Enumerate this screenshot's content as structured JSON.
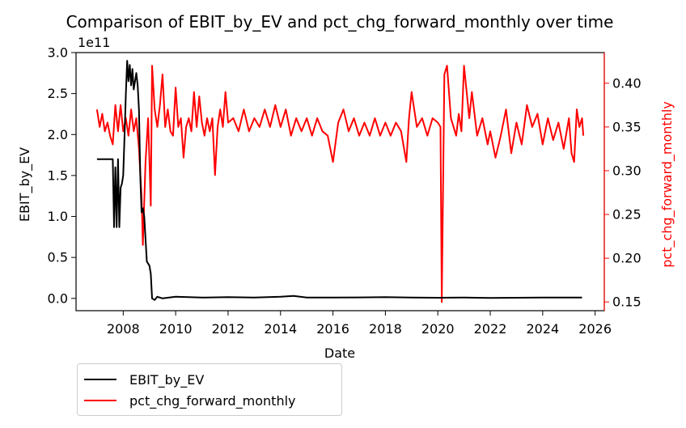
{
  "chart_data": {
    "type": "line",
    "title": "Comparison of EBIT_by_EV and pct_chg_forward_monthly over time",
    "xlabel": "Date",
    "ylabel_left": "EBIT_by_EV",
    "ylabel_right": "pct_chg_forward_monthly",
    "left_axis_offset_label": "1e11",
    "x_ticks": [
      "2008",
      "2010",
      "2012",
      "2014",
      "2016",
      "2018",
      "2020",
      "2022",
      "2024",
      "2026"
    ],
    "y_left_ticks": [
      "0.0",
      "0.5",
      "1.0",
      "1.5",
      "2.0",
      "2.5",
      "3.0"
    ],
    "y_right_ticks": [
      "0.15",
      "0.20",
      "0.25",
      "0.30",
      "0.35",
      "0.40"
    ],
    "xlim": [
      2006.2,
      2026.35
    ],
    "ylim_left": [
      -0.15,
      3.0
    ],
    "ylim_right": [
      0.14,
      0.435
    ],
    "grid": false,
    "legend_position": "below-left",
    "series": [
      {
        "name": "EBIT_by_EV",
        "axis": "left",
        "color": "#000000",
        "points": [
          [
            2007.0,
            1.7
          ],
          [
            2007.6,
            1.7
          ],
          [
            2007.65,
            0.87
          ],
          [
            2007.7,
            1.6
          ],
          [
            2007.75,
            0.87
          ],
          [
            2007.8,
            1.7
          ],
          [
            2007.85,
            0.87
          ],
          [
            2007.9,
            1.35
          ],
          [
            2007.95,
            1.4
          ],
          [
            2008.0,
            1.5
          ],
          [
            2008.05,
            2.0
          ],
          [
            2008.1,
            2.5
          ],
          [
            2008.15,
            2.9
          ],
          [
            2008.2,
            2.65
          ],
          [
            2008.25,
            2.85
          ],
          [
            2008.3,
            2.6
          ],
          [
            2008.35,
            2.8
          ],
          [
            2008.4,
            2.55
          ],
          [
            2008.5,
            2.75
          ],
          [
            2008.55,
            2.6
          ],
          [
            2008.6,
            2.3
          ],
          [
            2008.65,
            1.5
          ],
          [
            2008.7,
            1.05
          ],
          [
            2008.75,
            1.1
          ],
          [
            2008.8,
            1.0
          ],
          [
            2008.9,
            0.45
          ],
          [
            2009.0,
            0.4
          ],
          [
            2009.05,
            0.3
          ],
          [
            2009.1,
            0.0
          ],
          [
            2009.2,
            -0.02
          ],
          [
            2009.3,
            0.02
          ],
          [
            2009.5,
            0.0
          ],
          [
            2010.0,
            0.02
          ],
          [
            2011.0,
            0.01
          ],
          [
            2012.0,
            0.015
          ],
          [
            2013.0,
            0.01
          ],
          [
            2014.0,
            0.02
          ],
          [
            2014.5,
            0.03
          ],
          [
            2015.0,
            0.01
          ],
          [
            2016.0,
            0.01
          ],
          [
            2017.0,
            0.012
          ],
          [
            2018.0,
            0.015
          ],
          [
            2019.0,
            0.01
          ],
          [
            2020.0,
            0.008
          ],
          [
            2021.0,
            0.01
          ],
          [
            2022.0,
            0.005
          ],
          [
            2023.0,
            0.008
          ],
          [
            2024.0,
            0.01
          ],
          [
            2025.5,
            0.01
          ]
        ]
      },
      {
        "name": "pct_chg_forward_monthly",
        "axis": "right",
        "color": "#ff0000",
        "points": [
          [
            2007.0,
            0.37
          ],
          [
            2007.1,
            0.35
          ],
          [
            2007.2,
            0.365
          ],
          [
            2007.3,
            0.345
          ],
          [
            2007.4,
            0.355
          ],
          [
            2007.5,
            0.34
          ],
          [
            2007.6,
            0.33
          ],
          [
            2007.7,
            0.375
          ],
          [
            2007.8,
            0.345
          ],
          [
            2007.9,
            0.375
          ],
          [
            2008.0,
            0.345
          ],
          [
            2008.1,
            0.36
          ],
          [
            2008.2,
            0.34
          ],
          [
            2008.3,
            0.37
          ],
          [
            2008.4,
            0.345
          ],
          [
            2008.5,
            0.36
          ],
          [
            2008.6,
            0.325
          ],
          [
            2008.7,
            0.27
          ],
          [
            2008.75,
            0.215
          ],
          [
            2008.85,
            0.31
          ],
          [
            2008.95,
            0.36
          ],
          [
            2009.05,
            0.26
          ],
          [
            2009.1,
            0.42
          ],
          [
            2009.2,
            0.37
          ],
          [
            2009.3,
            0.35
          ],
          [
            2009.4,
            0.375
          ],
          [
            2009.5,
            0.41
          ],
          [
            2009.6,
            0.35
          ],
          [
            2009.7,
            0.37
          ],
          [
            2009.8,
            0.345
          ],
          [
            2009.9,
            0.34
          ],
          [
            2010.0,
            0.395
          ],
          [
            2010.1,
            0.35
          ],
          [
            2010.2,
            0.36
          ],
          [
            2010.3,
            0.315
          ],
          [
            2010.4,
            0.35
          ],
          [
            2010.5,
            0.36
          ],
          [
            2010.6,
            0.345
          ],
          [
            2010.7,
            0.39
          ],
          [
            2010.8,
            0.35
          ],
          [
            2010.9,
            0.385
          ],
          [
            2011.0,
            0.355
          ],
          [
            2011.1,
            0.34
          ],
          [
            2011.2,
            0.36
          ],
          [
            2011.3,
            0.345
          ],
          [
            2011.4,
            0.36
          ],
          [
            2011.5,
            0.295
          ],
          [
            2011.6,
            0.35
          ],
          [
            2011.7,
            0.37
          ],
          [
            2011.8,
            0.35
          ],
          [
            2011.9,
            0.39
          ],
          [
            2012.0,
            0.355
          ],
          [
            2012.2,
            0.36
          ],
          [
            2012.4,
            0.345
          ],
          [
            2012.6,
            0.37
          ],
          [
            2012.8,
            0.345
          ],
          [
            2013.0,
            0.36
          ],
          [
            2013.2,
            0.35
          ],
          [
            2013.4,
            0.37
          ],
          [
            2013.6,
            0.35
          ],
          [
            2013.8,
            0.375
          ],
          [
            2014.0,
            0.35
          ],
          [
            2014.2,
            0.37
          ],
          [
            2014.4,
            0.34
          ],
          [
            2014.6,
            0.36
          ],
          [
            2014.8,
            0.345
          ],
          [
            2015.0,
            0.36
          ],
          [
            2015.2,
            0.34
          ],
          [
            2015.4,
            0.36
          ],
          [
            2015.6,
            0.345
          ],
          [
            2015.8,
            0.34
          ],
          [
            2016.0,
            0.31
          ],
          [
            2016.2,
            0.355
          ],
          [
            2016.4,
            0.37
          ],
          [
            2016.6,
            0.345
          ],
          [
            2016.8,
            0.36
          ],
          [
            2017.0,
            0.34
          ],
          [
            2017.2,
            0.355
          ],
          [
            2017.4,
            0.34
          ],
          [
            2017.6,
            0.36
          ],
          [
            2017.8,
            0.34
          ],
          [
            2018.0,
            0.355
          ],
          [
            2018.2,
            0.34
          ],
          [
            2018.4,
            0.355
          ],
          [
            2018.6,
            0.345
          ],
          [
            2018.8,
            0.31
          ],
          [
            2018.9,
            0.36
          ],
          [
            2019.0,
            0.39
          ],
          [
            2019.2,
            0.35
          ],
          [
            2019.4,
            0.36
          ],
          [
            2019.6,
            0.34
          ],
          [
            2019.8,
            0.36
          ],
          [
            2020.0,
            0.355
          ],
          [
            2020.1,
            0.35
          ],
          [
            2020.15,
            0.15
          ],
          [
            2020.25,
            0.41
          ],
          [
            2020.35,
            0.42
          ],
          [
            2020.5,
            0.36
          ],
          [
            2020.7,
            0.34
          ],
          [
            2020.8,
            0.365
          ],
          [
            2020.9,
            0.345
          ],
          [
            2021.0,
            0.42
          ],
          [
            2021.2,
            0.36
          ],
          [
            2021.3,
            0.39
          ],
          [
            2021.5,
            0.34
          ],
          [
            2021.7,
            0.36
          ],
          [
            2021.9,
            0.33
          ],
          [
            2022.0,
            0.345
          ],
          [
            2022.2,
            0.315
          ],
          [
            2022.4,
            0.34
          ],
          [
            2022.6,
            0.37
          ],
          [
            2022.8,
            0.32
          ],
          [
            2023.0,
            0.355
          ],
          [
            2023.2,
            0.33
          ],
          [
            2023.4,
            0.375
          ],
          [
            2023.6,
            0.35
          ],
          [
            2023.8,
            0.365
          ],
          [
            2024.0,
            0.33
          ],
          [
            2024.2,
            0.36
          ],
          [
            2024.4,
            0.335
          ],
          [
            2024.6,
            0.355
          ],
          [
            2024.8,
            0.325
          ],
          [
            2025.0,
            0.36
          ],
          [
            2025.1,
            0.32
          ],
          [
            2025.2,
            0.31
          ],
          [
            2025.3,
            0.37
          ],
          [
            2025.4,
            0.35
          ],
          [
            2025.5,
            0.36
          ],
          [
            2025.55,
            0.34
          ]
        ]
      }
    ]
  }
}
